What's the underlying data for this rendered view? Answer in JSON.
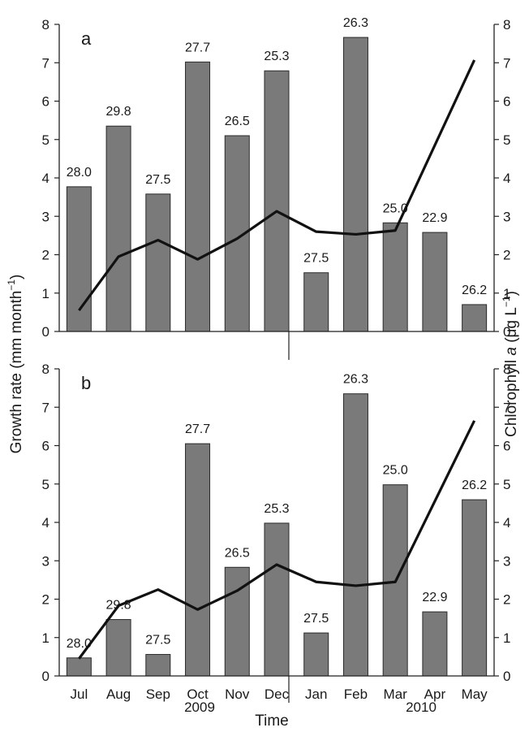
{
  "figure": {
    "ylabel_left": "Growth rate (mm month",
    "ylabel_left_sup": "−1",
    "ylabel_left_close": ")",
    "ylabel_right_pre": "Chlorophyll ",
    "ylabel_right_italic": "a",
    "ylabel_right_unit": " (μg L",
    "ylabel_right_sup": "−1",
    "ylabel_right_close": ")",
    "xlabel": "Time",
    "year_labels": [
      "2009",
      "2010"
    ]
  },
  "chart_data": [
    {
      "type": "bar",
      "panel_label": "a",
      "categories": [
        "Jul",
        "Aug",
        "Sep",
        "Oct",
        "Nov",
        "Dec",
        "Jan",
        "Feb",
        "Mar",
        "Apr",
        "May"
      ],
      "series": [
        {
          "values": [
            3.77,
            5.35,
            3.58,
            7.02,
            5.1,
            6.79,
            1.53,
            7.66,
            2.83,
            2.58,
            0.7
          ],
          "axis": "left",
          "kind": "bar",
          "color": "#7a7a7a"
        },
        {
          "values": [
            0.55,
            1.95,
            2.38,
            1.88,
            2.42,
            3.13,
            2.6,
            2.53,
            2.63,
            4.85,
            7.07
          ],
          "axis": "right",
          "kind": "line",
          "color": "#111111"
        }
      ],
      "bar_labels": [
        "28.0",
        "29.8",
        "27.5",
        "27.7",
        "26.5",
        "25.3",
        "27.5",
        "26.3",
        "25.0",
        "22.9",
        "26.2"
      ],
      "ylim_left": [
        0,
        8
      ],
      "ylim_right": [
        0,
        8
      ],
      "yticks": [
        "0",
        "1",
        "2",
        "3",
        "4",
        "5",
        "6",
        "7",
        "8"
      ]
    },
    {
      "type": "bar",
      "panel_label": "b",
      "categories": [
        "Jul",
        "Aug",
        "Sep",
        "Oct",
        "Nov",
        "Dec",
        "Jan",
        "Feb",
        "Mar",
        "Apr",
        "May"
      ],
      "series": [
        {
          "values": [
            0.47,
            1.47,
            0.56,
            6.05,
            2.83,
            3.98,
            1.12,
            7.35,
            4.98,
            1.67,
            4.59
          ],
          "axis": "left",
          "kind": "bar",
          "color": "#7a7a7a"
        },
        {
          "values": [
            0.45,
            1.83,
            2.25,
            1.73,
            2.22,
            2.9,
            2.45,
            2.35,
            2.45,
            4.55,
            6.65
          ],
          "axis": "right",
          "kind": "line",
          "color": "#111111"
        }
      ],
      "bar_labels": [
        "28.0",
        "29.8",
        "27.5",
        "27.7",
        "26.5",
        "25.3",
        "27.5",
        "26.3",
        "25.0",
        "22.9",
        "26.2"
      ],
      "ylim_left": [
        0,
        8
      ],
      "ylim_right": [
        0,
        8
      ],
      "yticks": [
        "0",
        "1",
        "2",
        "3",
        "4",
        "5",
        "6",
        "7",
        "8"
      ]
    }
  ]
}
